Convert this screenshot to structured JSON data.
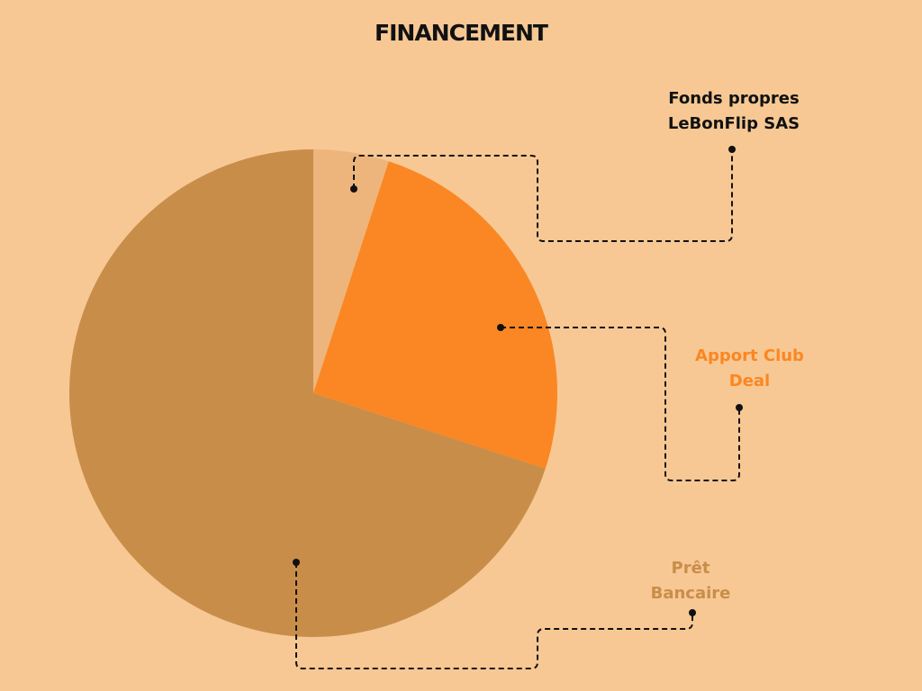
{
  "chart_data": {
    "type": "pie",
    "title": "FINANCEMENT",
    "categories": [
      "Fonds propres LeBonFlip SAS",
      "Apport Club Deal",
      "Prêt Bancaire"
    ],
    "values": [
      5,
      25,
      70
    ],
    "colors": [
      "#edb57c",
      "#fa8723",
      "#c98d4a"
    ]
  }
}
